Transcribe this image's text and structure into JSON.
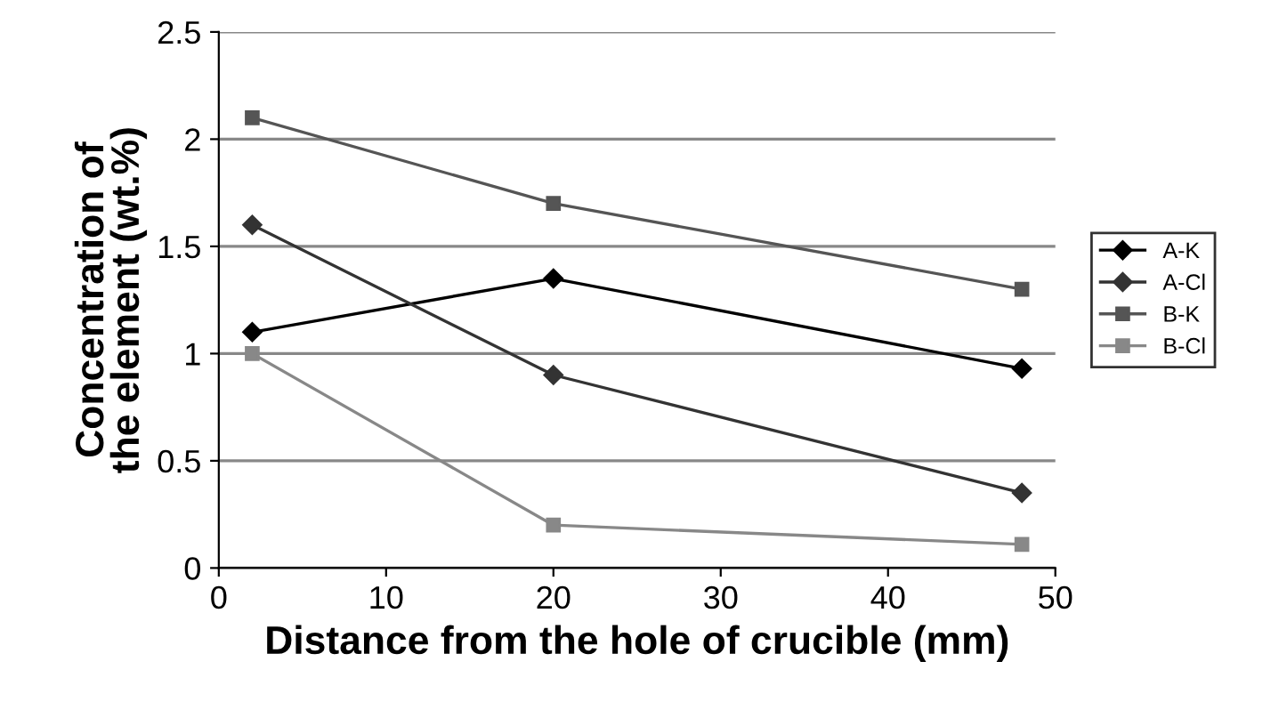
{
  "chart_data": {
    "type": "line",
    "xlabel": "Distance from the hole of crucible (mm)",
    "ylabel": "Concentration of\nthe element (wt.%)",
    "xlim": [
      0,
      50
    ],
    "xticks": [
      0,
      10,
      20,
      30,
      40,
      50
    ],
    "ylim": [
      0,
      2.5
    ],
    "yticks": [
      0,
      0.5,
      1,
      1.5,
      2,
      2.5
    ],
    "grid": "y",
    "legend": "right",
    "series": [
      {
        "name": "A-K",
        "color": "#000000",
        "marker": "diamond",
        "x": [
          2,
          20,
          48
        ],
        "values": [
          1.1,
          1.35,
          0.93
        ]
      },
      {
        "name": "A-Cl",
        "color": "#333333",
        "marker": "diamond",
        "x": [
          2,
          20,
          48
        ],
        "values": [
          1.6,
          0.9,
          0.35
        ]
      },
      {
        "name": "B-K",
        "color": "#555555",
        "marker": "square",
        "x": [
          2,
          20,
          48
        ],
        "values": [
          2.1,
          1.7,
          1.3
        ]
      },
      {
        "name": "B-Cl",
        "color": "#888888",
        "marker": "square",
        "x": [
          2,
          20,
          48
        ],
        "values": [
          1.0,
          0.2,
          0.11
        ]
      }
    ]
  }
}
